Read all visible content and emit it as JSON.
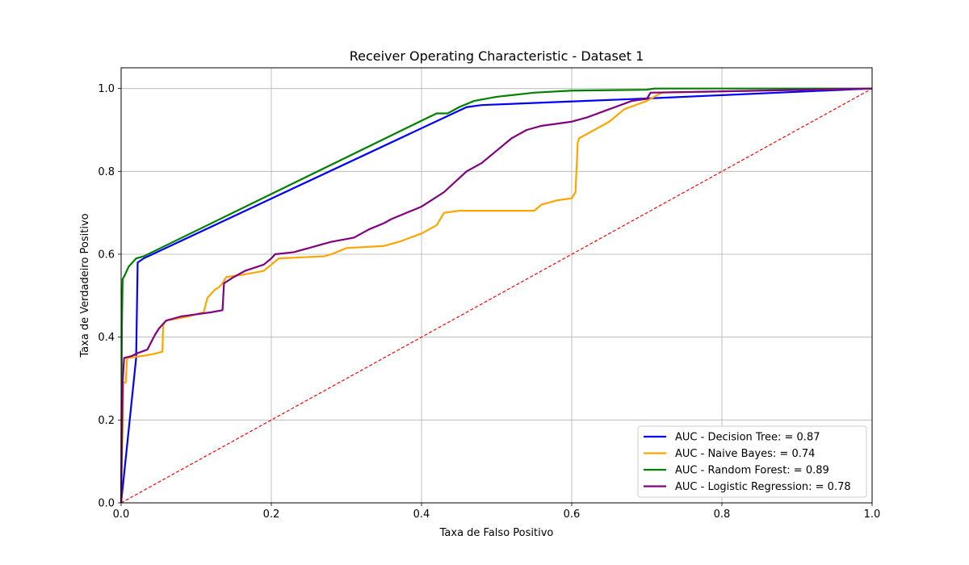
{
  "chart_data": {
    "type": "line",
    "title": "Receiver Operating Characteristic - Dataset 1",
    "xlabel": "Taxa de Falso Positivo",
    "ylabel": "Taxa de Verdadeiro Positivo",
    "xlim": [
      0,
      1
    ],
    "ylim": [
      0,
      1.05
    ],
    "xticks": [
      0,
      0.2,
      0.4,
      0.6,
      0.8,
      1
    ],
    "xtick_labels": [
      "0.0",
      "0.2",
      "0.4",
      "0.6",
      "0.8",
      "1.0"
    ],
    "yticks": [
      0,
      0.2,
      0.4,
      0.6,
      0.8,
      1
    ],
    "ytick_labels": [
      "0.0",
      "0.2",
      "0.4",
      "0.6",
      "0.8",
      "1.0"
    ],
    "grid": true,
    "legend_position": "lower-right",
    "series": [
      {
        "name": "AUC - Decision Tree: = 0.87",
        "color": "#0000ff",
        "x": [
          0,
          0.02,
          0.022,
          0.03,
          0.46,
          0.48,
          0.7,
          1
        ],
        "y": [
          0,
          0.35,
          0.58,
          0.59,
          0.955,
          0.96,
          0.976,
          1
        ]
      },
      {
        "name": "AUC - Naive Bayes: = 0.74",
        "color": "#ffa500",
        "x": [
          0,
          0.003,
          0.006,
          0.008,
          0.01,
          0.03,
          0.045,
          0.055,
          0.056,
          0.06,
          0.09,
          0.11,
          0.115,
          0.125,
          0.13,
          0.135,
          0.14,
          0.16,
          0.19,
          0.2,
          0.21,
          0.27,
          0.28,
          0.3,
          0.35,
          0.37,
          0.4,
          0.42,
          0.43,
          0.45,
          0.55,
          0.56,
          0.58,
          0.6,
          0.605,
          0.608,
          0.61,
          0.62,
          0.63,
          0.65,
          0.67,
          0.7,
          0.72,
          1
        ],
        "y": [
          0,
          0.29,
          0.29,
          0.35,
          0.35,
          0.355,
          0.36,
          0.365,
          0.43,
          0.44,
          0.45,
          0.46,
          0.495,
          0.515,
          0.52,
          0.53,
          0.545,
          0.55,
          0.56,
          0.575,
          0.59,
          0.595,
          0.6,
          0.615,
          0.62,
          0.63,
          0.65,
          0.67,
          0.7,
          0.705,
          0.705,
          0.72,
          0.73,
          0.735,
          0.75,
          0.87,
          0.88,
          0.89,
          0.9,
          0.92,
          0.95,
          0.97,
          0.99,
          1
        ]
      },
      {
        "name": "AUC - Random Forest: = 0.89",
        "color": "#008000",
        "x": [
          0,
          0.001,
          0.002,
          0.005,
          0.01,
          0.015,
          0.02,
          0.03,
          0.42,
          0.435,
          0.45,
          0.47,
          0.5,
          0.55,
          0.6,
          0.7,
          0.71,
          1
        ],
        "y": [
          0,
          0.42,
          0.54,
          0.55,
          0.57,
          0.58,
          0.59,
          0.595,
          0.94,
          0.94,
          0.955,
          0.97,
          0.98,
          0.99,
          0.995,
          0.997,
          1,
          1
        ]
      },
      {
        "name": "AUC - Logistic Regression: = 0.78",
        "color": "#800080",
        "x": [
          0,
          0.002,
          0.004,
          0.005,
          0.015,
          0.02,
          0.035,
          0.042,
          0.045,
          0.05,
          0.06,
          0.08,
          0.1,
          0.12,
          0.135,
          0.137,
          0.15,
          0.165,
          0.19,
          0.2,
          0.205,
          0.23,
          0.26,
          0.28,
          0.31,
          0.33,
          0.35,
          0.36,
          0.38,
          0.4,
          0.43,
          0.46,
          0.48,
          0.5,
          0.52,
          0.54,
          0.56,
          0.6,
          0.62,
          0.65,
          0.68,
          0.7,
          0.705,
          1
        ],
        "y": [
          0,
          0.29,
          0.35,
          0.35,
          0.355,
          0.36,
          0.37,
          0.395,
          0.405,
          0.42,
          0.44,
          0.45,
          0.455,
          0.46,
          0.465,
          0.53,
          0.545,
          0.56,
          0.575,
          0.59,
          0.6,
          0.605,
          0.62,
          0.63,
          0.64,
          0.66,
          0.675,
          0.685,
          0.7,
          0.715,
          0.75,
          0.8,
          0.82,
          0.85,
          0.88,
          0.9,
          0.91,
          0.92,
          0.93,
          0.95,
          0.97,
          0.975,
          0.99,
          1
        ]
      },
      {
        "name": "",
        "color": "#ff0000",
        "dashed": true,
        "x": [
          0,
          1
        ],
        "y": [
          0,
          1
        ]
      }
    ]
  }
}
